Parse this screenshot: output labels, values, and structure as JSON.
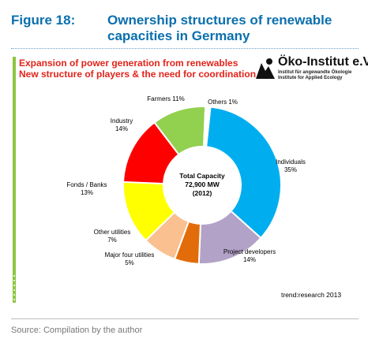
{
  "figure": {
    "label": "Figure 18:",
    "title": "Ownership structures of renewable capacities in Germany"
  },
  "slide": {
    "line1": "Expansion of power generation from renewables",
    "line2": "New structure of players & the need for coordination"
  },
  "logo": {
    "name": "Öko-Institut e.V.",
    "sub1": "Institut für angewandte Ökologie",
    "sub2": "Institute for Applied Ecology"
  },
  "chart_data": {
    "type": "pie",
    "variant": "donut",
    "center_label": [
      "Total Capacity",
      "72,900 MW",
      "(2012)"
    ],
    "slices": [
      {
        "name": "Individuals",
        "value": 35,
        "color": "#00aeef"
      },
      {
        "name": "Project developers",
        "value": 14,
        "color": "#b3a2c7"
      },
      {
        "name": "Major four utilities",
        "value": 5,
        "color": "#e36c0a"
      },
      {
        "name": "Other utilities",
        "value": 7,
        "color": "#fac090"
      },
      {
        "name": "Fonds / Banks",
        "value": 13,
        "color": "#ffff00"
      },
      {
        "name": "Industry",
        "value": 14,
        "color": "#ff0000"
      },
      {
        "name": "Farmers",
        "value": 11,
        "color": "#92d050"
      },
      {
        "name": "Others",
        "value": 1,
        "color": "#ffffff"
      }
    ]
  },
  "credit": "trend:research 2013",
  "source": "Source: Compilation by the author",
  "colors": {
    "figure_title": "#0a6fae",
    "slide_heading": "#e2231a",
    "accent_bar": "#8cc63f"
  }
}
